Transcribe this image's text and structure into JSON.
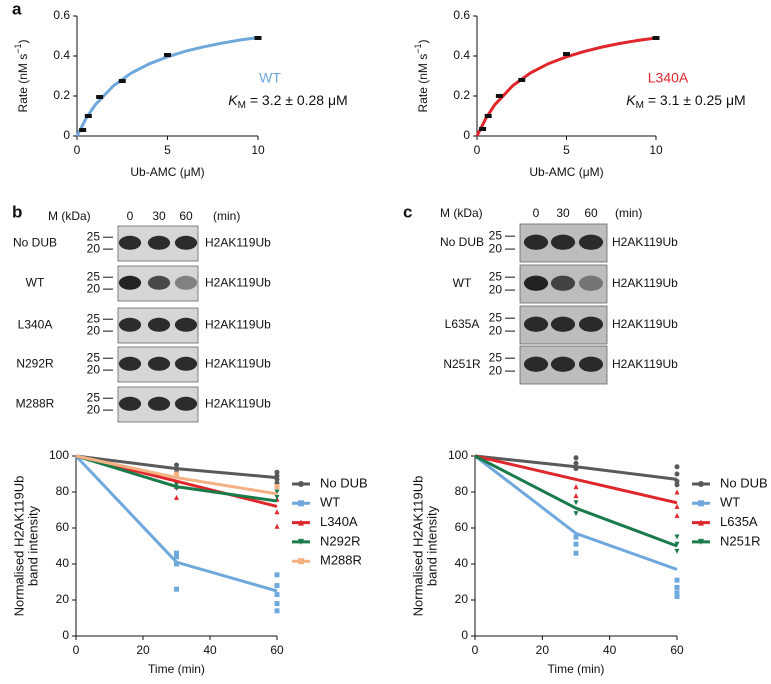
{
  "panel_labels": [
    "a",
    "b",
    "c"
  ],
  "chart_data": [
    {
      "type": "scatter",
      "xlabel": "Ub-AMC (μM)",
      "ylabel": [
        "Rate (nM s",
        "−1",
        ")"
      ],
      "xlim": [
        0,
        10
      ],
      "ylim": [
        0,
        0.6
      ],
      "xticks": [
        0,
        5,
        10
      ],
      "yticks": [
        0,
        0.2,
        0.4,
        0.6
      ],
      "marker_color": "#111111",
      "series": [
        {
          "name": "WT",
          "color": "#6fa8dc",
          "x": [
            0.3125,
            0.625,
            1.25,
            2.5,
            5,
            10
          ],
          "values": [
            0.03,
            0.1,
            0.195,
            0.275,
            0.405,
            0.49
          ]
        }
      ],
      "fit": {
        "x": [
          0,
          0.5,
          1,
          2,
          3,
          4,
          5,
          6,
          7,
          8,
          9,
          10
        ],
        "values": [
          0,
          0.088,
          0.155,
          0.25,
          0.315,
          0.361,
          0.396,
          0.424,
          0.446,
          0.464,
          0.48,
          0.492
        ]
      },
      "annotation": {
        "symbol": "K",
        "subscript": "M",
        "text": " = 3.2 ± 0.28 μM"
      }
    },
    {
      "type": "scatter",
      "xlabel": "Ub-AMC (μM)",
      "ylabel": [
        "Rate (nM s",
        "−1",
        ")"
      ],
      "xlim": [
        0,
        10
      ],
      "ylim": [
        0,
        0.6
      ],
      "xticks": [
        0,
        5,
        10
      ],
      "yticks": [
        0,
        0.2,
        0.4,
        0.6
      ],
      "marker_color": "#111111",
      "series": [
        {
          "name": "L340A",
          "color": "#e0262b",
          "x": [
            0.3125,
            0.625,
            1.25,
            2.5,
            5,
            10
          ],
          "values": [
            0.035,
            0.1,
            0.2,
            0.28,
            0.41,
            0.49
          ]
        }
      ],
      "fit": {
        "x": [
          0,
          0.5,
          1,
          2,
          3,
          4,
          5,
          6,
          7,
          8,
          9,
          10
        ],
        "values": [
          0,
          0.089,
          0.157,
          0.252,
          0.316,
          0.362,
          0.396,
          0.423,
          0.445,
          0.463,
          0.478,
          0.49
        ]
      },
      "annotation": {
        "symbol": "K",
        "subscript": "M",
        "text": " = 3.1 ± 0.25 μM"
      }
    },
    {
      "type": "line",
      "xlabel": "Time (min)",
      "ylabel": [
        "Normalised H2AK119Ub",
        "band intensity"
      ],
      "xlim": [
        0,
        60
      ],
      "ylim": [
        0,
        100
      ],
      "xticks": [
        0,
        20,
        40,
        60
      ],
      "yticks": [
        0,
        20,
        40,
        60,
        80,
        100
      ],
      "legend": "right",
      "series": [
        {
          "name": "No DUB",
          "color": "#5a5a5a",
          "marker": "circle",
          "x": [
            0,
            30,
            60
          ],
          "values": [
            100,
            93,
            88
          ],
          "replicate_x": [
            30,
            30,
            30,
            30,
            60,
            60,
            60,
            60
          ],
          "replicates": [
            95,
            93,
            91,
            89,
            91,
            89,
            87,
            85
          ]
        },
        {
          "name": "WT",
          "color": "#6fa8dc",
          "marker": "square",
          "x": [
            0,
            30,
            60
          ],
          "values": [
            100,
            41,
            25
          ],
          "replicate_x": [
            30,
            30,
            30,
            30,
            60,
            60,
            60,
            60,
            60
          ],
          "replicates": [
            46,
            44,
            40,
            26,
            34,
            28,
            23,
            18,
            14
          ]
        },
        {
          "name": "L340A",
          "color": "#e0262b",
          "marker": "triangle",
          "x": [
            0,
            30,
            60
          ],
          "values": [
            100,
            86,
            72
          ],
          "replicate_x": [
            30,
            30,
            60,
            60,
            60
          ],
          "replicates": [
            83,
            77,
            76,
            69,
            61
          ]
        },
        {
          "name": "N292R",
          "color": "#1a7a4a",
          "marker": "triangle-down",
          "x": [
            0,
            30,
            60
          ],
          "values": [
            100,
            83,
            75
          ],
          "replicate_x": [
            30,
            30,
            60,
            60
          ],
          "replicates": [
            84,
            82,
            80,
            77
          ]
        },
        {
          "name": "M288R",
          "color": "#f4b183",
          "marker": "square",
          "x": [
            0,
            30,
            60
          ],
          "values": [
            100,
            88,
            79
          ],
          "replicate_x": [
            30,
            60
          ],
          "replicates": [
            90,
            83
          ]
        }
      ]
    },
    {
      "type": "line",
      "xlabel": "Time (min)",
      "ylabel": [
        "Normalised H2AK119Ub",
        "band intensity"
      ],
      "xlim": [
        0,
        60
      ],
      "ylim": [
        0,
        100
      ],
      "xticks": [
        0,
        20,
        40,
        60
      ],
      "yticks": [
        0,
        20,
        40,
        60,
        80,
        100
      ],
      "legend": "right",
      "series": [
        {
          "name": "No DUB",
          "color": "#5a5a5a",
          "marker": "circle",
          "x": [
            0,
            30,
            60
          ],
          "values": [
            100,
            94,
            87
          ],
          "replicate_x": [
            30,
            30,
            30,
            60,
            60,
            60,
            60
          ],
          "replicates": [
            99,
            96,
            93,
            94,
            90,
            86,
            84
          ]
        },
        {
          "name": "WT",
          "color": "#6fa8dc",
          "marker": "square",
          "x": [
            0,
            30,
            60
          ],
          "values": [
            100,
            57,
            37
          ],
          "replicate_x": [
            30,
            30,
            30,
            60,
            60,
            60,
            60
          ],
          "replicates": [
            55,
            51,
            46,
            31,
            27,
            24,
            22
          ]
        },
        {
          "name": "L635A",
          "color": "#e0262b",
          "marker": "triangle",
          "x": [
            0,
            30,
            60
          ],
          "values": [
            100,
            87,
            74
          ],
          "replicate_x": [
            30,
            30,
            60,
            60,
            60
          ],
          "replicates": [
            83,
            78,
            80,
            72,
            67
          ]
        },
        {
          "name": "N251R",
          "color": "#1a7a4a",
          "marker": "triangle-down",
          "x": [
            0,
            30,
            60
          ],
          "values": [
            100,
            71,
            50
          ],
          "replicate_x": [
            30,
            30,
            60,
            60,
            60
          ],
          "replicates": [
            74,
            68,
            55,
            51,
            47
          ]
        }
      ]
    }
  ],
  "blots": [
    {
      "header": {
        "marker": "M (kDa)",
        "times": [
          "0",
          "30",
          "60"
        ],
        "unit": "(min)"
      },
      "rows": [
        {
          "label": "No DUB",
          "markers": [
            "25",
            "20"
          ],
          "target": "H2AK119Ub"
        },
        {
          "label": "WT",
          "markers": [
            "25",
            "20"
          ],
          "target": "H2AK119Ub"
        },
        {
          "label": "L340A",
          "markers": [
            "25",
            "20"
          ],
          "target": "H2AK119Ub"
        },
        {
          "label": "N292R",
          "markers": [
            "25",
            "20"
          ],
          "target": "H2AK119Ub"
        },
        {
          "label": "M288R",
          "markers": [
            "25",
            "20"
          ],
          "target": "H2AK119Ub"
        }
      ]
    },
    {
      "header": {
        "marker": "M (kDa)",
        "times": [
          "0",
          "30",
          "60"
        ],
        "unit": "(min)"
      },
      "rows": [
        {
          "label": "No DUB",
          "markers": [
            "25",
            "20"
          ],
          "target": "H2AK119Ub"
        },
        {
          "label": "WT",
          "markers": [
            "25",
            "20"
          ],
          "target": "H2AK119Ub"
        },
        {
          "label": "L635A",
          "markers": [
            "25",
            "20"
          ],
          "target": "H2AK119Ub"
        },
        {
          "label": "N251R",
          "markers": [
            "25",
            "20"
          ],
          "target": "H2AK119Ub"
        }
      ]
    }
  ]
}
